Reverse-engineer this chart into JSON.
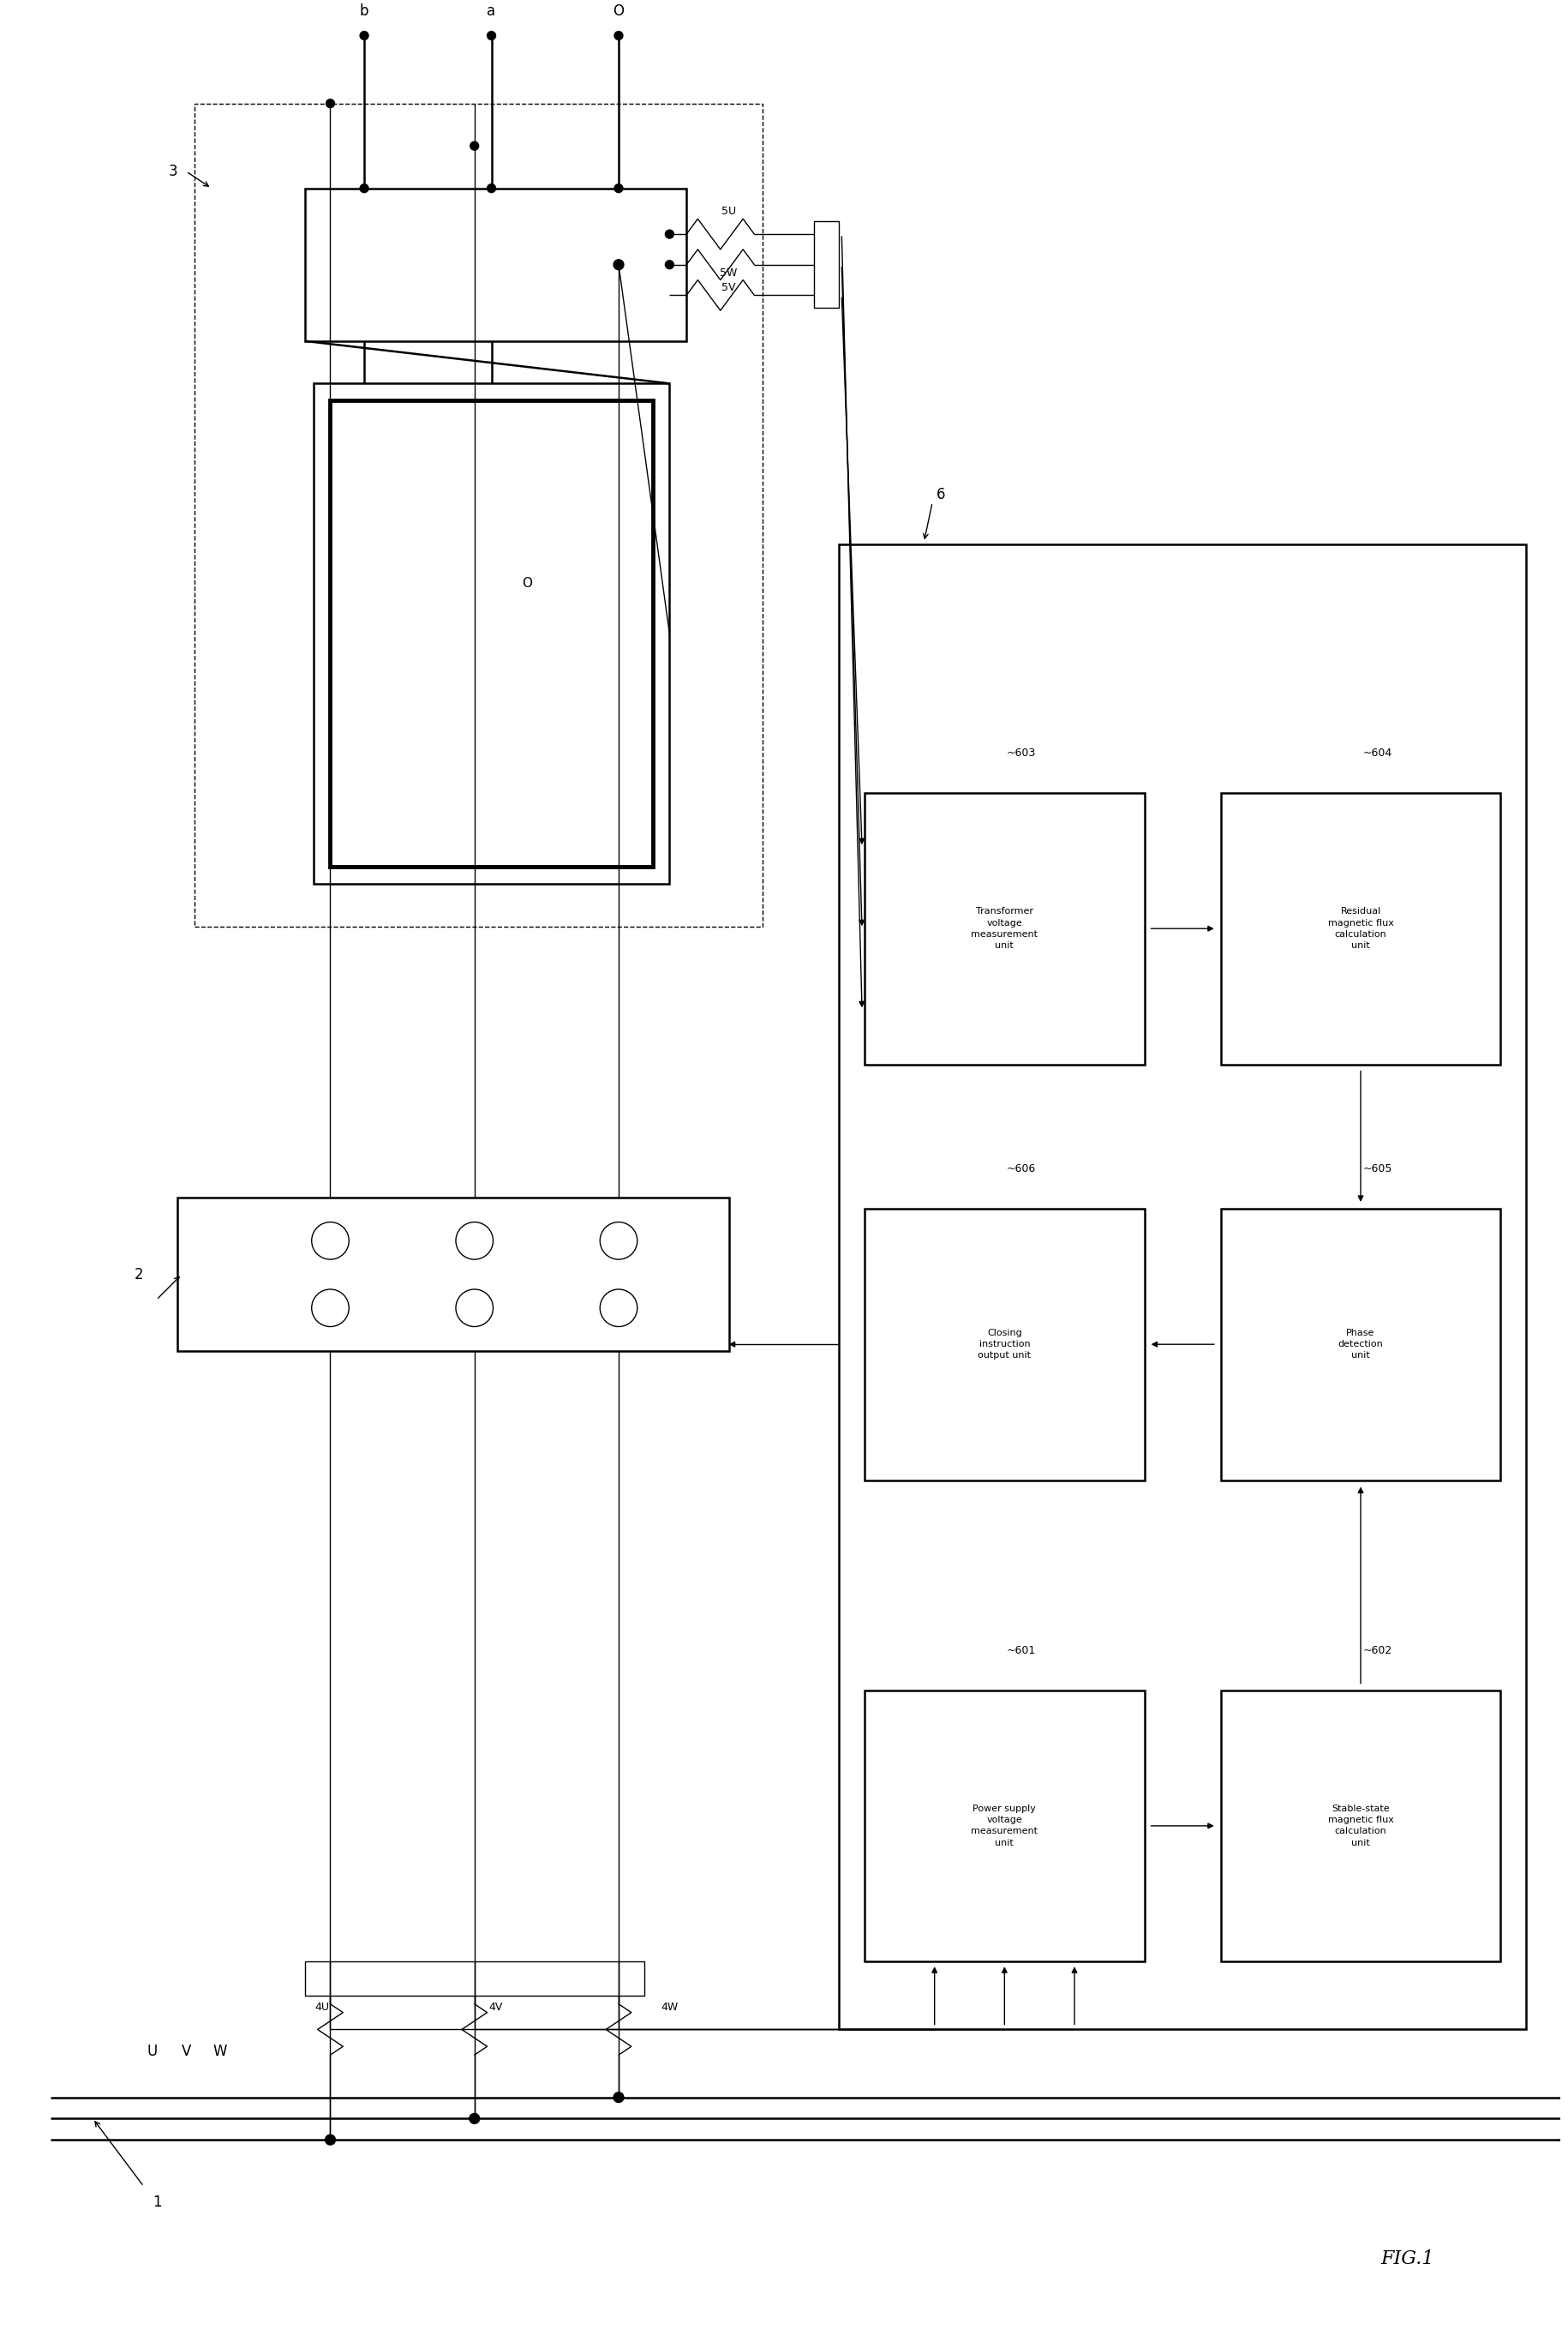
{
  "bg": "#ffffff",
  "fw": 18.3,
  "fh": 27.18,
  "title": "FIG.1",
  "box_texts": {
    "601": "Power supply\nvoltage\nmeasurement\nunit",
    "602": "Stable-state\nmagnetic flux\ncalculation\nunit",
    "603": "Transformer\nvoltage\nmeasurement\nunit",
    "604": "Residual\nmagnetic flux\ncalculation\nunit",
    "605": "Phase\ndetection\nunit",
    "606": "Closing\ninstruction\noutput unit"
  },
  "labels": {
    "b": "b",
    "a": "a",
    "O_top": "O",
    "O_mid": "O",
    "1": "1",
    "2": "2",
    "3": "3",
    "6": "6",
    "U": "U",
    "V": "V",
    "W": "W",
    "4U": "4U",
    "4V": "4V",
    "4W": "4W",
    "5U": "5U",
    "5V": "5V",
    "5W": "5W",
    "601": "601",
    "602": "602",
    "603": "603",
    "604": "604",
    "605": "605",
    "606": "606"
  }
}
